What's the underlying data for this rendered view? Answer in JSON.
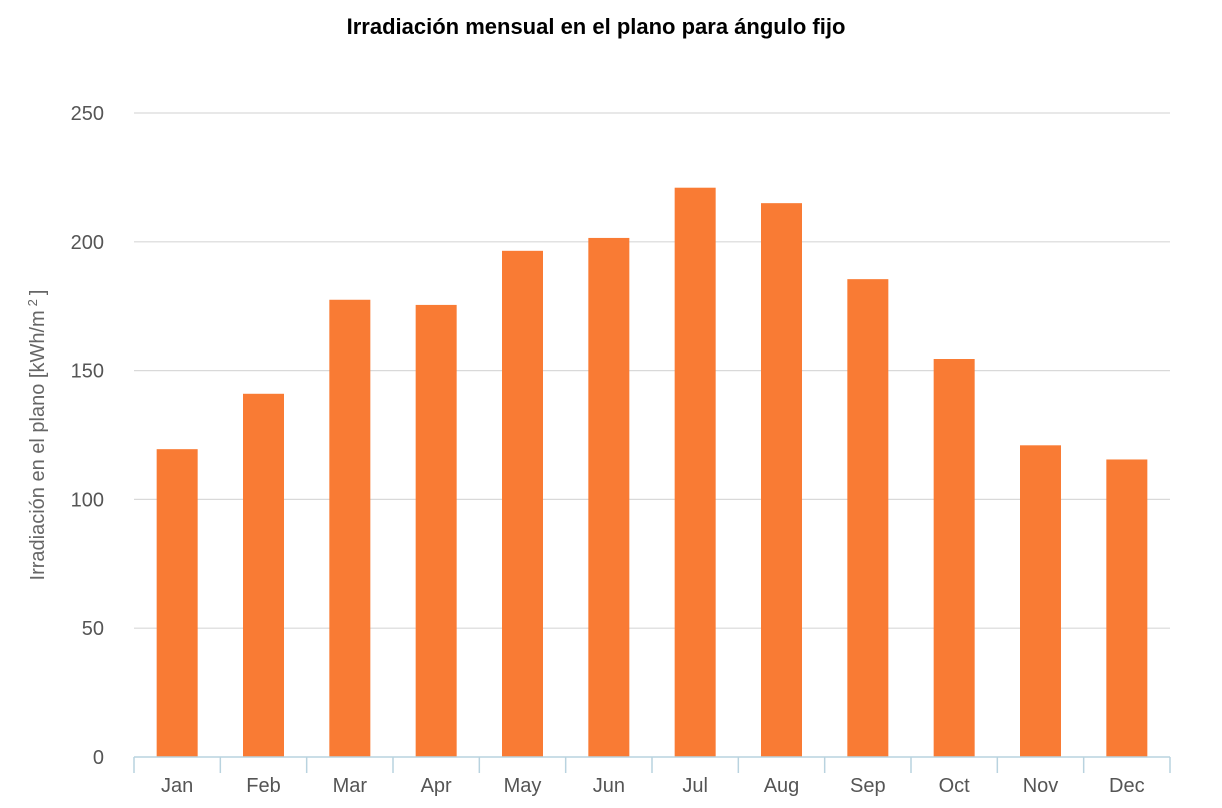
{
  "chart_data": {
    "type": "bar",
    "title": "Irradiación mensual en el plano para ángulo fijo",
    "ylabel_prefix": "Irradiación en el plano [kWh/m",
    "ylabel_superscript": "2",
    "ylabel_suffix": "]",
    "xlabel": "",
    "categories": [
      "Jan",
      "Feb",
      "Mar",
      "Apr",
      "May",
      "Jun",
      "Jul",
      "Aug",
      "Sep",
      "Oct",
      "Nov",
      "Dec"
    ],
    "series": [
      {
        "color": "#f97b34",
        "values": [
          119.5,
          141,
          177.5,
          175.5,
          196.5,
          201.5,
          221,
          215,
          185.5,
          154.5,
          121,
          115.5
        ]
      }
    ],
    "ylim": [
      0,
      250
    ],
    "yticks": [
      0,
      50,
      100,
      150,
      200,
      250
    ],
    "grid": true,
    "legend": "none"
  }
}
